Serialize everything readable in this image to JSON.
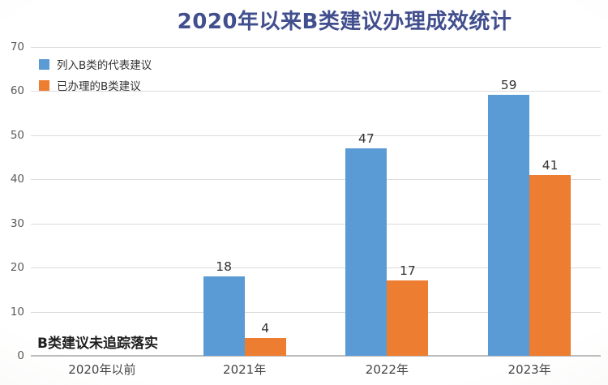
{
  "chart_data": {
    "type": "bar",
    "title": "2020年以来B类建议办理成效统计",
    "categories": [
      "2020年以前",
      "2021年",
      "2022年",
      "2023年"
    ],
    "series": [
      {
        "name": "列入B类的代表建议",
        "color": "#5b9bd5",
        "values": [
          null,
          18,
          47,
          59
        ]
      },
      {
        "name": "已办理的B类建议",
        "color": "#ed7d31",
        "values": [
          null,
          4,
          17,
          41
        ]
      }
    ],
    "ylim": [
      0,
      70
    ],
    "yticks": [
      0,
      10,
      20,
      30,
      40,
      50,
      60,
      70
    ],
    "grid": "horizontal",
    "legend_position": "top-left",
    "data_labels": true,
    "annotations": [
      {
        "text": "B类建议未追踪落实",
        "category": "2020年以前"
      }
    ]
  },
  "colors": {
    "title": "#424f8e",
    "gridline": "#dcdcdc",
    "axis_line": "#bdbdbd",
    "tick_label": "#595959",
    "value_label": "#333333",
    "category_label": "#454545",
    "series_blue": "#5b9bd5",
    "series_orange": "#ed7d31"
  }
}
